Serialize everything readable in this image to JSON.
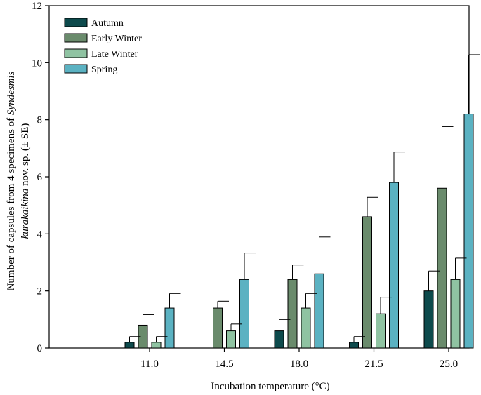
{
  "chart_data": {
    "type": "bar",
    "xlabel": "Incubation temperature (°C)",
    "ylabel_line1_prefix": "Number of capsules from 4 specimens of ",
    "ylabel_line1_italic": "Syndesmis",
    "ylabel_line2_italic": "kurakaikina",
    "ylabel_line2_suffix": " nov. sp. (± SE)",
    "categories": [
      "11.0",
      "14.5",
      "18.0",
      "21.5",
      "25.0"
    ],
    "ylim": [
      0,
      12
    ],
    "yticks": [
      "0",
      "2",
      "4",
      "6",
      "8",
      "10",
      "12"
    ],
    "legend_position": "top-left",
    "grid": false,
    "series": [
      {
        "name": "Autumn",
        "color": "#0d4a4c",
        "values": [
          0.2,
          0,
          0.6,
          0.2,
          2.0
        ],
        "se": [
          0.2,
          0,
          0.4,
          0.2,
          0.7
        ]
      },
      {
        "name": "Early Winter",
        "color": "#6a8b6c",
        "values": [
          0.8,
          1.4,
          2.4,
          4.6,
          5.6
        ],
        "se": [
          0.37,
          0.24,
          0.51,
          0.68,
          2.16
        ]
      },
      {
        "name": "Late Winter",
        "color": "#8fc3a2",
        "values": [
          0.2,
          0.6,
          1.4,
          1.2,
          2.4
        ],
        "se": [
          0.2,
          0.24,
          0.51,
          0.58,
          0.75
        ]
      },
      {
        "name": "Spring",
        "color": "#5bb2c2",
        "values": [
          1.4,
          2.4,
          2.6,
          5.8,
          8.2
        ],
        "se": [
          0.51,
          0.93,
          1.29,
          1.07,
          2.08
        ]
      }
    ]
  }
}
